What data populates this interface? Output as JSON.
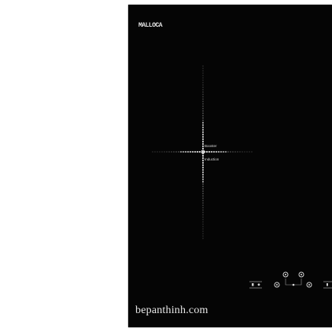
{
  "product": {
    "brand_logo": "MALLOCA",
    "zone": {
      "booster_label": "Booster",
      "induction_label": "Induction"
    },
    "colors": {
      "glass": "#050505",
      "print": "#d8d8d8",
      "background": "#ffffff"
    },
    "icons": [
      "power-icon",
      "plus-icon",
      "minus-icon",
      "timer-icon",
      "lock-icon"
    ]
  },
  "watermark": {
    "text": "bepanthinh.com"
  }
}
